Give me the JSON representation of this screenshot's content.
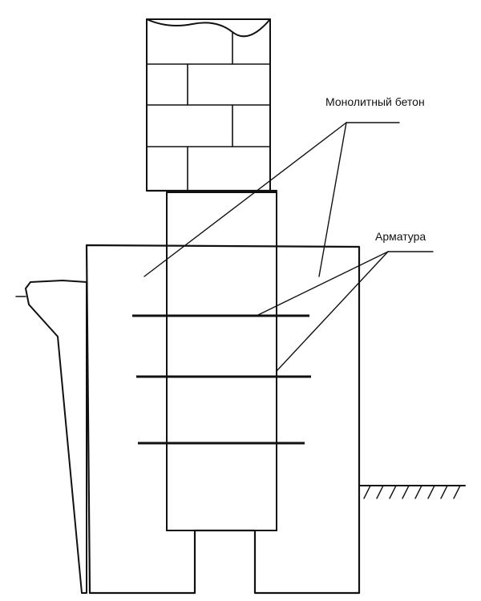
{
  "diagram": {
    "labels": {
      "monolithic_concrete": "Монолитный бетон",
      "rebar": "Арматура"
    }
  }
}
